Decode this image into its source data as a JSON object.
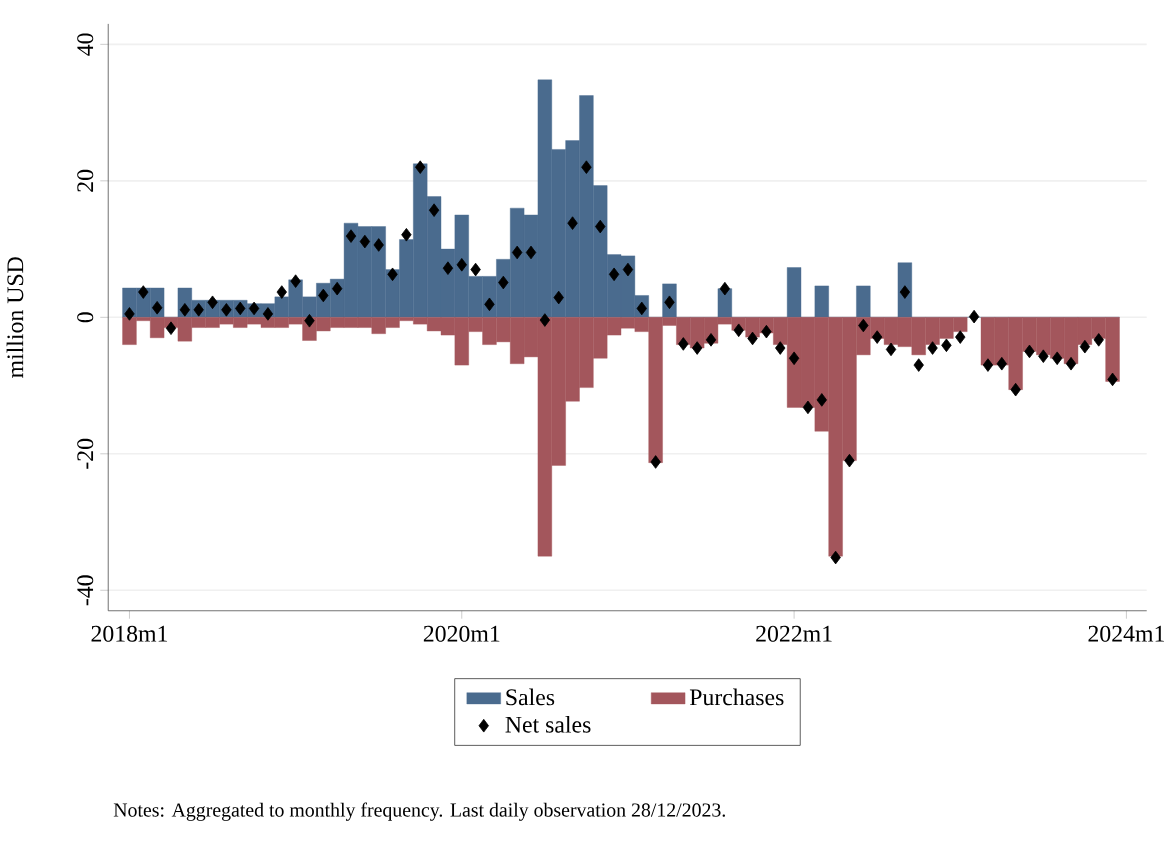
{
  "chart_data": {
    "type": "bar",
    "ylabel": "million USD",
    "annotations": [
      "Notes: Aggregated to monthly frequency. Last daily observation 28/12/2023."
    ],
    "x": [
      "2018-01",
      "2018-02",
      "2018-03",
      "2018-04",
      "2018-05",
      "2018-06",
      "2018-07",
      "2018-08",
      "2018-09",
      "2018-10",
      "2018-11",
      "2018-12",
      "2019-01",
      "2019-02",
      "2019-03",
      "2019-04",
      "2019-05",
      "2019-06",
      "2019-07",
      "2019-08",
      "2019-09",
      "2019-10",
      "2019-11",
      "2019-12",
      "2020-01",
      "2020-02",
      "2020-03",
      "2020-04",
      "2020-05",
      "2020-06",
      "2020-07",
      "2020-08",
      "2020-09",
      "2020-10",
      "2020-11",
      "2020-12",
      "2021-01",
      "2021-02",
      "2021-03",
      "2021-04",
      "2021-05",
      "2021-06",
      "2021-07",
      "2021-08",
      "2021-09",
      "2021-10",
      "2021-11",
      "2021-12",
      "2022-01",
      "2022-02",
      "2022-03",
      "2022-04",
      "2022-05",
      "2022-06",
      "2022-07",
      "2022-08",
      "2022-09",
      "2022-10",
      "2022-11",
      "2022-12",
      "2023-01",
      "2023-02",
      "2023-03",
      "2023-04",
      "2023-05",
      "2023-06",
      "2023-07",
      "2023-08",
      "2023-09",
      "2023-10",
      "2023-11",
      "2023-12"
    ],
    "series": [
      {
        "name": "Sales",
        "color": "#4a6b8e",
        "values": [
          4.3,
          4.3,
          4.3,
          0,
          4.3,
          2.5,
          2.5,
          2.5,
          2.5,
          2,
          2,
          3,
          5.5,
          3,
          5,
          5.6,
          13.8,
          13.3,
          13.3,
          7,
          11.4,
          22.5,
          17.7,
          10,
          15,
          6,
          6,
          8.5,
          16,
          15,
          34.8,
          24.6,
          25.9,
          32.5,
          19.3,
          9.2,
          9,
          3.2,
          0,
          4.9,
          0,
          0,
          0,
          4.2,
          0,
          0,
          0,
          0,
          7.3,
          0,
          4.6,
          0,
          0,
          4.6,
          0,
          0,
          8,
          0,
          0,
          0,
          0,
          0,
          0,
          0,
          0,
          0,
          0,
          0,
          0,
          0,
          0,
          0
        ]
      },
      {
        "name": "Purchases",
        "color": "#a3565c",
        "values": [
          -4,
          -0.5,
          -3,
          -1.5,
          -3.5,
          -1.5,
          -1.5,
          -1,
          -1.5,
          -1,
          -1.5,
          -1.5,
          -1,
          -3.4,
          -2,
          -1.5,
          -1.5,
          -1.5,
          -2.4,
          -1.5,
          -0.5,
          -1,
          -2,
          -2.6,
          -7,
          -2.1,
          -4,
          -3.6,
          -6.8,
          -5.8,
          -35,
          -21.7,
          -12.3,
          -10.3,
          -6,
          -2.6,
          -1.6,
          -2.1,
          -21.3,
          -1.2,
          -4,
          -4.5,
          -3.8,
          -1,
          -1.9,
          -2.9,
          -2.3,
          -4,
          -13.2,
          -13.2,
          -16.7,
          -35,
          -21,
          -5.5,
          -3.1,
          -4,
          -4.3,
          -5.5,
          -4,
          -3.1,
          -2.1,
          null,
          -7,
          -7,
          -10.6,
          -5,
          -5.5,
          -6,
          -6.8,
          -4,
          -3.1,
          -9.4
        ]
      },
      {
        "name": "Net sales",
        "type": "scatter",
        "color": "#000000",
        "marker": "diamond",
        "values": [
          0.5,
          3.7,
          1.4,
          -1.6,
          1.1,
          1.1,
          2.2,
          1.1,
          1.3,
          1.3,
          0.5,
          3.7,
          5.3,
          -0.5,
          3.2,
          4.2,
          11.9,
          11.1,
          10.6,
          6.3,
          12.1,
          22,
          15.7,
          7.2,
          7.7,
          7,
          1.9,
          5.1,
          9.5,
          9.5,
          -0.4,
          2.9,
          13.8,
          22,
          13.3,
          6.3,
          7,
          1.3,
          -21.2,
          2.2,
          -3.9,
          -4.5,
          -3.3,
          4.2,
          -1.9,
          -3.1,
          -2.1,
          -4.5,
          -6,
          -13.2,
          -12.1,
          -35.2,
          -21,
          -1.2,
          -2.9,
          -4.7,
          3.7,
          -7,
          -4.5,
          -4.1,
          -2.9,
          0.1,
          -7,
          -6.8,
          -10.6,
          -5,
          -5.7,
          -6,
          -6.8,
          -4.3,
          -3.3,
          -9.1
        ]
      }
    ],
    "xlim": [
      "2017-11-15",
      "2024-02-15"
    ],
    "xticks": [
      {
        "value": "2018-01",
        "label": "2018m1"
      },
      {
        "value": "2020-01",
        "label": "2020m1"
      },
      {
        "value": "2022-01",
        "label": "2022m1"
      },
      {
        "value": "2024-01",
        "label": "2024m1"
      }
    ],
    "ylim": [
      -43,
      43
    ],
    "yticks": [
      -40,
      -20,
      0,
      20,
      40
    ],
    "grid": "y",
    "stacked": true,
    "legend": "bottom"
  }
}
